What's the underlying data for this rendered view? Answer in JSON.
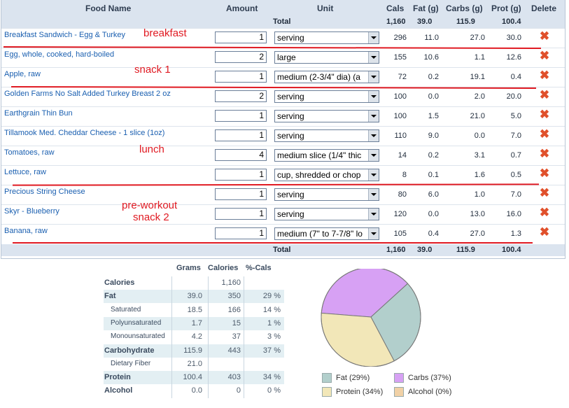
{
  "columns": {
    "food": "Food Name",
    "amount": "Amount",
    "unit": "Unit",
    "cals": "Cals",
    "fat": "Fat (g)",
    "carbs": "Carbs (g)",
    "prot": "Prot (g)",
    "delete": "Delete"
  },
  "totals": {
    "label": "Total",
    "cals": "1,160",
    "fat": "39.0",
    "carbs": "115.9",
    "prot": "100.4"
  },
  "foods": [
    {
      "name": "Breakfast Sandwich - Egg & Turkey",
      "amount": "1",
      "unit": "serving",
      "cals": "296",
      "fat": "11.0",
      "carbs": "27.0",
      "prot": "30.0"
    },
    {
      "name": "Egg, whole, cooked, hard-boiled",
      "amount": "2",
      "unit": "large",
      "cals": "155",
      "fat": "10.6",
      "carbs": "1.1",
      "prot": "12.6"
    },
    {
      "name": "Apple, raw",
      "amount": "1",
      "unit": "medium (2-3/4\" dia) (a",
      "cals": "72",
      "fat": "0.2",
      "carbs": "19.1",
      "prot": "0.4"
    },
    {
      "name": "Golden Farms No Salt Added Turkey Breast 2 oz",
      "amount": "2",
      "unit": "serving",
      "cals": "100",
      "fat": "0.0",
      "carbs": "2.0",
      "prot": "20.0"
    },
    {
      "name": "Earthgrain Thin Bun",
      "amount": "1",
      "unit": "serving",
      "cals": "100",
      "fat": "1.5",
      "carbs": "21.0",
      "prot": "5.0"
    },
    {
      "name": "Tillamook Med. Cheddar Cheese - 1 slice (1oz)",
      "amount": "1",
      "unit": "serving",
      "cals": "110",
      "fat": "9.0",
      "carbs": "0.0",
      "prot": "7.0"
    },
    {
      "name": "Tomatoes, raw",
      "amount": "4",
      "unit": "medium slice (1/4\" thic",
      "cals": "14",
      "fat": "0.2",
      "carbs": "3.1",
      "prot": "0.7"
    },
    {
      "name": "Lettuce, raw",
      "amount": "1",
      "unit": "cup, shredded or chop",
      "cals": "8",
      "fat": "0.1",
      "carbs": "1.6",
      "prot": "0.5"
    },
    {
      "name": "Precious String Cheese",
      "amount": "1",
      "unit": "serving",
      "cals": "80",
      "fat": "6.0",
      "carbs": "1.0",
      "prot": "7.0"
    },
    {
      "name": "Skyr - Blueberry",
      "amount": "1",
      "unit": "serving",
      "cals": "120",
      "fat": "0.0",
      "carbs": "13.0",
      "prot": "16.0"
    },
    {
      "name": "Banana, raw",
      "amount": "1",
      "unit": "medium (7\" to 7-7/8\" lo",
      "cals": "105",
      "fat": "0.4",
      "carbs": "27.0",
      "prot": "1.3"
    }
  ],
  "annotations": {
    "breakfast": "breakfast",
    "snack1": "snack 1",
    "lunch": "lunch",
    "preworkout": "pre-workout",
    "snack2": "snack 2"
  },
  "summary": {
    "headers": {
      "grams": "Grams",
      "calories": "Calories",
      "pct": "%-Cals"
    },
    "rows": [
      {
        "label": "Calories",
        "grams": "",
        "calories": "1,160",
        "pct": "",
        "sub": false
      },
      {
        "label": "Fat",
        "grams": "39.0",
        "calories": "350",
        "pct": "29 %",
        "sub": false
      },
      {
        "label": "Saturated",
        "grams": "18.5",
        "calories": "166",
        "pct": "14 %",
        "sub": true
      },
      {
        "label": "Polyunsaturated",
        "grams": "1.7",
        "calories": "15",
        "pct": "1 %",
        "sub": true
      },
      {
        "label": "Monounsaturated",
        "grams": "4.2",
        "calories": "37",
        "pct": "3 %",
        "sub": true
      },
      {
        "label": "Carbohydrate",
        "grams": "115.9",
        "calories": "443",
        "pct": "37 %",
        "sub": false
      },
      {
        "label": "Dietary Fiber",
        "grams": "21.0",
        "calories": "",
        "pct": "",
        "sub": true
      },
      {
        "label": "Protein",
        "grams": "100.4",
        "calories": "403",
        "pct": "34 %",
        "sub": false
      },
      {
        "label": "Alcohol",
        "grams": "0.0",
        "calories": "0",
        "pct": "0 %",
        "sub": false
      }
    ]
  },
  "chart_data": {
    "type": "pie",
    "slices": [
      {
        "label": "Fat (29%)",
        "value": 29,
        "color": "#b2cfcc"
      },
      {
        "label": "Carbs (37%)",
        "value": 37,
        "color": "#d7a1f4"
      },
      {
        "label": "Protein (34%)",
        "value": 34,
        "color": "#f2e7b8"
      },
      {
        "label": "Alcohol (0%)",
        "value": 0,
        "color": "#f1d1a6"
      }
    ]
  },
  "colors": {
    "accent_red": "#e01a22",
    "link_blue": "#1a5fb0",
    "header_bg": "#dbe4ef"
  }
}
